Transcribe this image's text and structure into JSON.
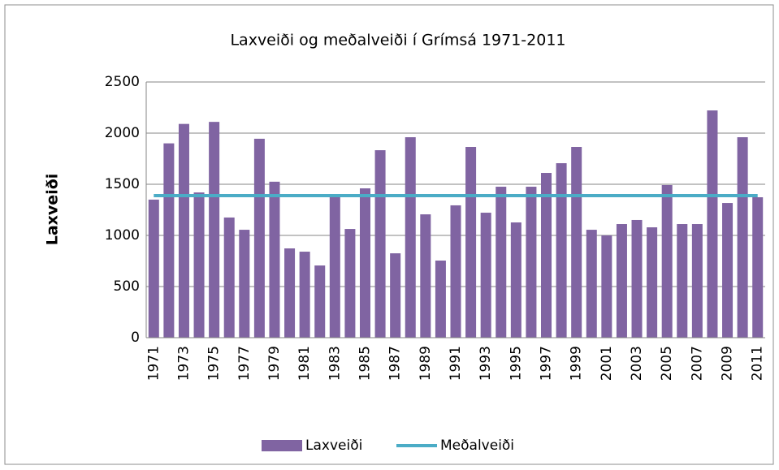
{
  "chart_data": {
    "type": "bar",
    "title": "Laxveiði og meðalveiði í Grímsá 1971-2011",
    "ylabel": "Laxveiði",
    "categories": [
      "1971",
      null,
      "1973",
      null,
      "1975",
      null,
      "1977",
      null,
      "1979",
      null,
      "1981",
      null,
      "1983",
      null,
      "1985",
      null,
      "1987",
      null,
      "1989",
      null,
      "1991",
      null,
      "1993",
      null,
      "1995",
      null,
      "1997",
      null,
      "1999",
      null,
      "2001",
      null,
      "2003",
      null,
      "2005",
      null,
      "2007",
      null,
      "2009",
      null,
      "2011"
    ],
    "series": [
      {
        "name": "Laxveiði",
        "type": "bar",
        "color": "#8064a2",
        "values": [
          1350,
          1900,
          2090,
          1420,
          2110,
          1175,
          1055,
          1945,
          1525,
          873,
          841,
          706,
          1397,
          1063,
          1460,
          1833,
          825,
          1960,
          1206,
          754,
          1294,
          1865,
          1222,
          1476,
          1127,
          1476,
          1611,
          1706,
          1865,
          1055,
          1000,
          1111,
          1151,
          1079,
          1492,
          1111,
          1111,
          2222,
          1317,
          1960,
          1373
        ]
      },
      {
        "name": "Meðalveiði",
        "type": "line",
        "color": "#4bacc6",
        "values": [
          1389,
          1389,
          1389,
          1389,
          1389,
          1389,
          1389,
          1389,
          1389,
          1389,
          1389,
          1389,
          1389,
          1389,
          1389,
          1389,
          1389,
          1389,
          1389,
          1389,
          1389,
          1389,
          1389,
          1389,
          1389,
          1389,
          1389,
          1389,
          1389,
          1389,
          1389,
          1389,
          1389,
          1389,
          1389,
          1389,
          1389,
          1389,
          1389,
          1389,
          1389
        ]
      }
    ],
    "ylim": [
      0,
      2500
    ],
    "yticks": [
      0,
      500,
      1000,
      1500,
      2000,
      2500
    ],
    "grid": true,
    "legend": "bottom"
  }
}
